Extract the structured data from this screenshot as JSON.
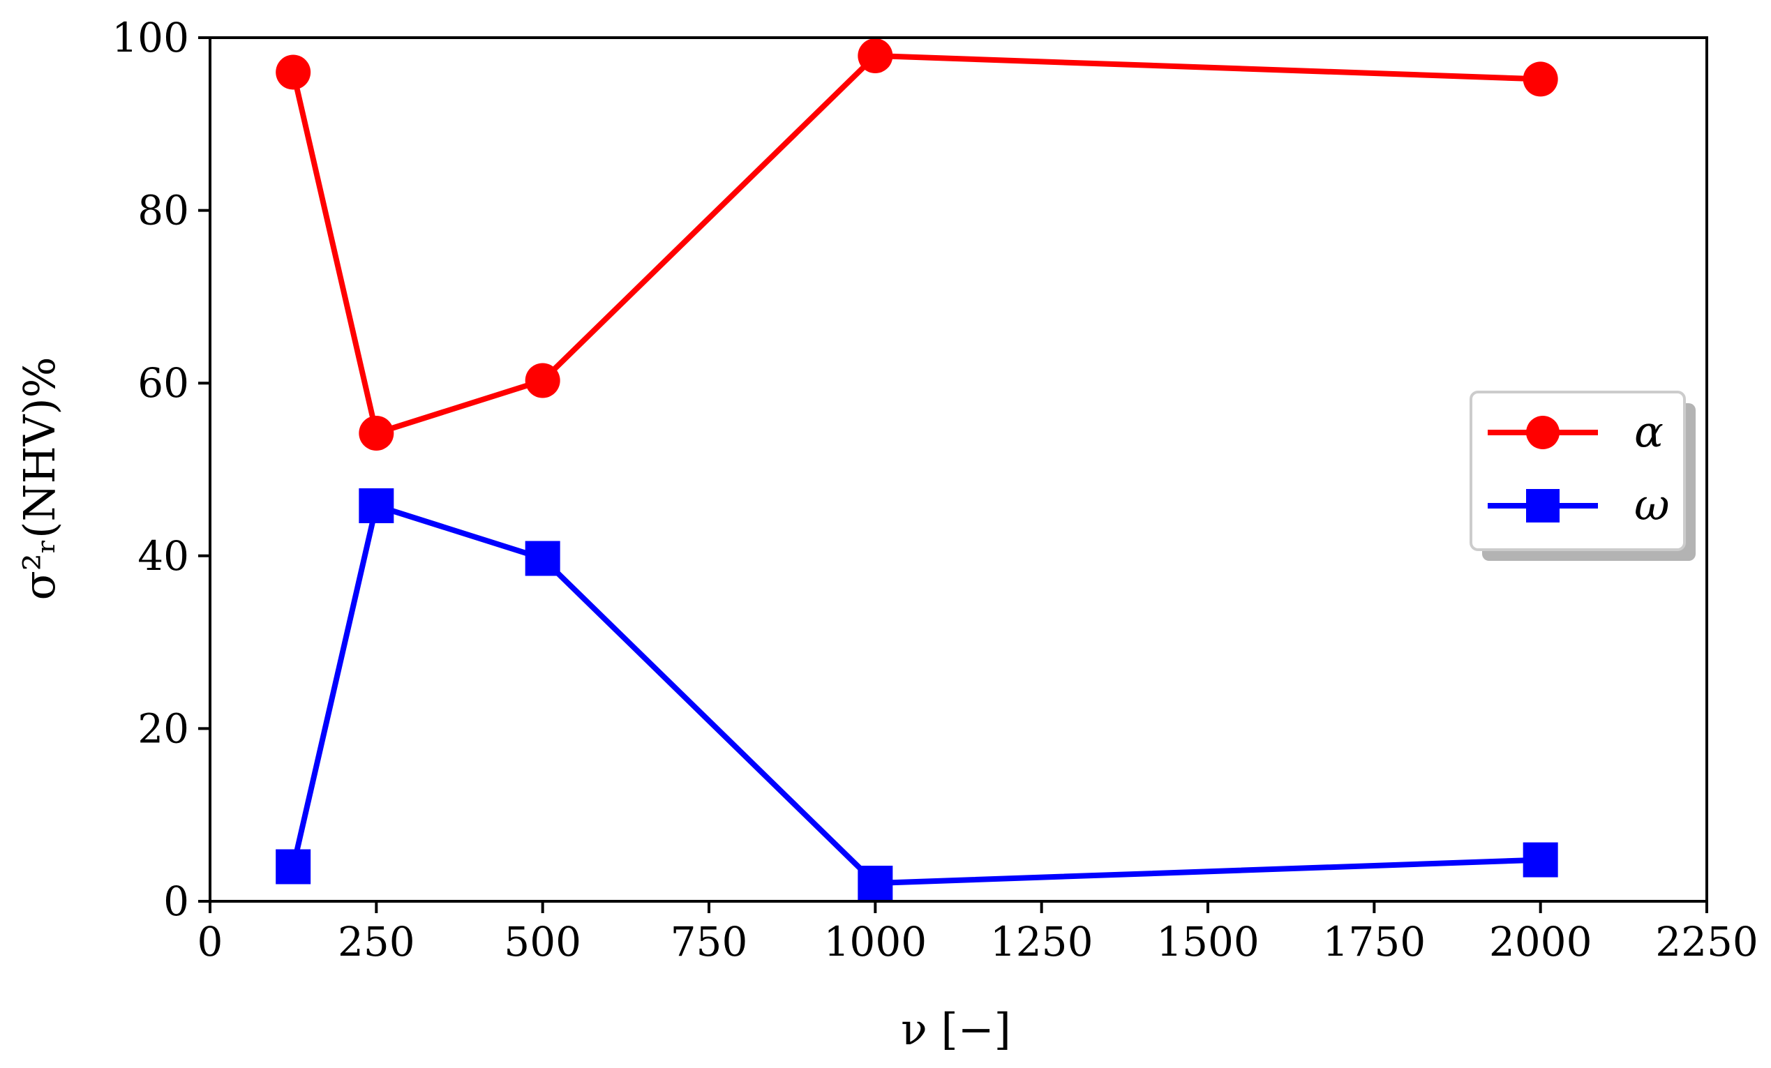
{
  "chart_data": {
    "type": "line",
    "title": "",
    "xlabel": "ν [−]",
    "ylabel": "σ²ᵣ(NHV)%",
    "xlim": [
      0,
      2250
    ],
    "ylim": [
      0,
      100
    ],
    "xticks": [
      0,
      250,
      500,
      750,
      1000,
      1250,
      1500,
      1750,
      2000,
      2250
    ],
    "yticks": [
      0,
      20,
      40,
      60,
      80,
      100
    ],
    "xtick_labels": [
      "0",
      "250",
      "500",
      "750",
      "1000",
      "1250",
      "1500",
      "1750",
      "2000",
      "2250"
    ],
    "ytick_labels": [
      "0",
      "20",
      "40",
      "60",
      "80",
      "100"
    ],
    "grid": false,
    "legend_position": "right",
    "x": [
      125,
      250,
      500,
      1000,
      2000
    ],
    "series": [
      {
        "name": "α",
        "color": "#ff0000",
        "marker": "circle",
        "values": [
          96,
          54.2,
          60.3,
          97.9,
          95.2
        ]
      },
      {
        "name": "ω",
        "color": "#0000ff",
        "marker": "square",
        "values": [
          4,
          45.8,
          39.7,
          2.1,
          4.8
        ]
      }
    ]
  }
}
